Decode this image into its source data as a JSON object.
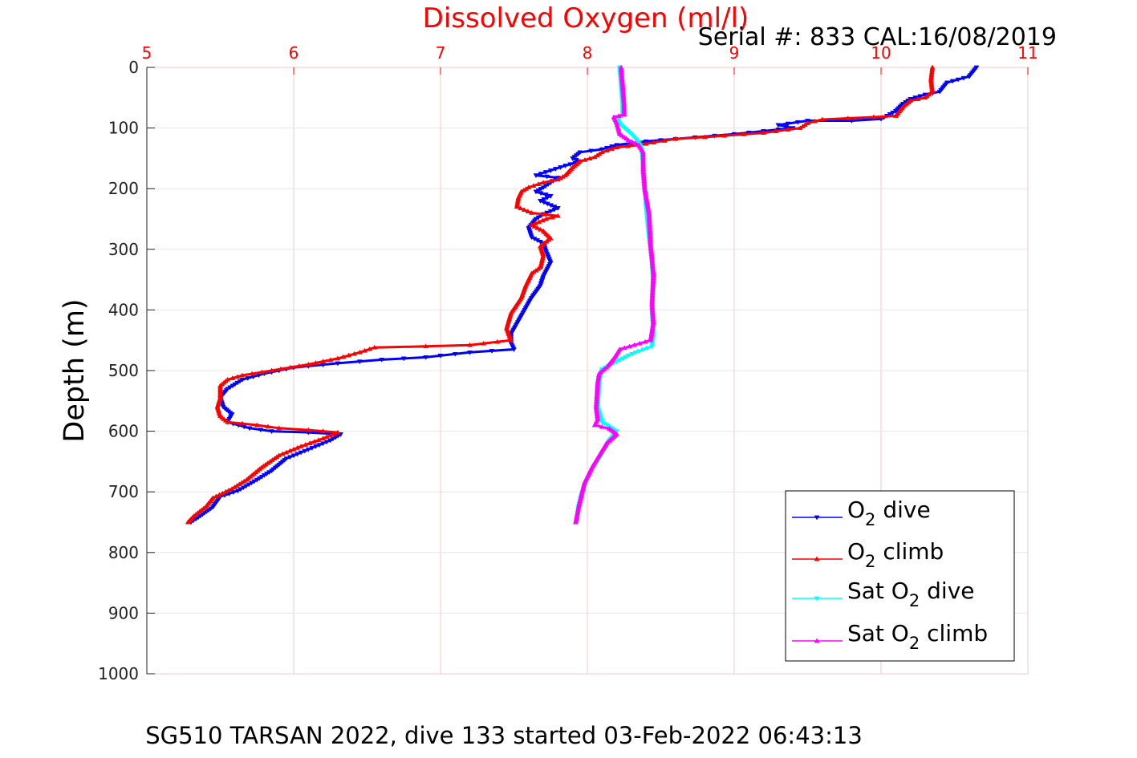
{
  "chart_data": {
    "type": "line",
    "title": "Dissolved Oxygen (ml/l)",
    "subtitle": "Serial #: 833  CAL:16/08/2019",
    "footer": "SG510 TARSAN 2022, dive 133 started 03-Feb-2022 06:43:13",
    "ylabel": "Depth (m)",
    "xlim": [
      5,
      11
    ],
    "ylim": [
      0,
      1000
    ],
    "y_reversed": true,
    "x_axis_position": "top",
    "x_ticks": [
      "5",
      "6",
      "7",
      "8",
      "9",
      "10",
      "11"
    ],
    "y_ticks": [
      "0",
      "100",
      "200",
      "300",
      "400",
      "500",
      "600",
      "700",
      "800",
      "900",
      "1000"
    ],
    "grid": true,
    "legend_position": "bottom-right",
    "legend": [
      {
        "main": "O",
        "sub": "2",
        "tail": " dive"
      },
      {
        "main": "O",
        "sub": "2",
        "tail": " climb"
      },
      {
        "main": "Sat O",
        "sub": "2",
        "tail": " dive"
      },
      {
        "main": "Sat O",
        "sub": "2",
        "tail": " climb"
      }
    ],
    "colors": {
      "title": "#ff0000",
      "x_ticks": "#ff0000",
      "grid": "#f2c8cc",
      "o2_dive": "#0000ff",
      "o2_climb": "#ff0000",
      "sat_dive": "#00ffff",
      "sat_climb": "#ff00ff"
    },
    "series": [
      {
        "key": "o2_dive",
        "marker": "down-triangle",
        "points": [
          [
            10.65,
            0
          ],
          [
            10.6,
            15
          ],
          [
            10.45,
            25
          ],
          [
            10.4,
            40
          ],
          [
            10.3,
            45
          ],
          [
            10.2,
            52
          ],
          [
            10.15,
            60
          ],
          [
            10.1,
            72
          ],
          [
            10.0,
            85
          ],
          [
            9.8,
            88
          ],
          [
            9.5,
            88
          ],
          [
            9.3,
            95
          ],
          [
            9.4,
            100
          ],
          [
            9.0,
            110
          ],
          [
            8.6,
            118
          ],
          [
            8.4,
            122
          ],
          [
            8.2,
            128
          ],
          [
            8.1,
            135
          ],
          [
            7.95,
            140
          ],
          [
            7.9,
            150
          ],
          [
            7.95,
            155
          ],
          [
            7.85,
            162
          ],
          [
            7.75,
            170
          ],
          [
            7.65,
            178
          ],
          [
            7.8,
            182
          ],
          [
            7.75,
            190
          ],
          [
            7.7,
            198
          ],
          [
            7.65,
            205
          ],
          [
            7.75,
            212
          ],
          [
            7.68,
            220
          ],
          [
            7.8,
            232
          ],
          [
            7.7,
            242
          ],
          [
            7.65,
            250
          ],
          [
            7.6,
            265
          ],
          [
            7.62,
            280
          ],
          [
            7.7,
            290
          ],
          [
            7.72,
            305
          ],
          [
            7.75,
            322
          ],
          [
            7.7,
            345
          ],
          [
            7.68,
            360
          ],
          [
            7.62,
            380
          ],
          [
            7.55,
            410
          ],
          [
            7.48,
            440
          ],
          [
            7.48,
            455
          ],
          [
            7.5,
            465
          ],
          [
            7.2,
            470
          ],
          [
            6.9,
            478
          ],
          [
            6.6,
            482
          ],
          [
            6.3,
            488
          ],
          [
            6.0,
            495
          ],
          [
            5.8,
            505
          ],
          [
            5.65,
            515
          ],
          [
            5.55,
            530
          ],
          [
            5.5,
            545
          ],
          [
            5.52,
            560
          ],
          [
            5.58,
            572
          ],
          [
            5.55,
            585
          ],
          [
            5.7,
            595
          ],
          [
            5.85,
            600
          ],
          [
            6.1,
            602
          ],
          [
            6.32,
            605
          ],
          [
            6.25,
            615
          ],
          [
            6.1,
            630
          ],
          [
            5.95,
            645
          ],
          [
            5.85,
            665
          ],
          [
            5.75,
            680
          ],
          [
            5.62,
            698
          ],
          [
            5.5,
            708
          ],
          [
            5.45,
            725
          ],
          [
            5.35,
            742
          ],
          [
            5.3,
            750
          ]
        ]
      },
      {
        "key": "o2_climb",
        "marker": "up-triangle",
        "points": [
          [
            10.35,
            0
          ],
          [
            10.34,
            20
          ],
          [
            10.35,
            40
          ],
          [
            10.3,
            50
          ],
          [
            10.2,
            55
          ],
          [
            10.15,
            65
          ],
          [
            10.1,
            80
          ],
          [
            9.95,
            82
          ],
          [
            9.6,
            86
          ],
          [
            9.5,
            92
          ],
          [
            9.45,
            100
          ],
          [
            9.2,
            108
          ],
          [
            8.8,
            115
          ],
          [
            8.6,
            118
          ],
          [
            8.45,
            124
          ],
          [
            8.35,
            128
          ],
          [
            8.2,
            132
          ],
          [
            8.1,
            140
          ],
          [
            8.05,
            148
          ],
          [
            7.95,
            155
          ],
          [
            7.9,
            165
          ],
          [
            7.85,
            178
          ],
          [
            7.8,
            185
          ],
          [
            7.7,
            190
          ],
          [
            7.6,
            198
          ],
          [
            7.55,
            205
          ],
          [
            7.53,
            215
          ],
          [
            7.52,
            230
          ],
          [
            7.62,
            240
          ],
          [
            7.8,
            245
          ],
          [
            7.72,
            250
          ],
          [
            7.62,
            260
          ],
          [
            7.7,
            270
          ],
          [
            7.75,
            282
          ],
          [
            7.68,
            295
          ],
          [
            7.7,
            310
          ],
          [
            7.68,
            330
          ],
          [
            7.62,
            340
          ],
          [
            7.58,
            360
          ],
          [
            7.55,
            380
          ],
          [
            7.48,
            405
          ],
          [
            7.45,
            430
          ],
          [
            7.48,
            450
          ],
          [
            7.2,
            458
          ],
          [
            6.9,
            460
          ],
          [
            6.55,
            462
          ],
          [
            6.45,
            470
          ],
          [
            6.3,
            480
          ],
          [
            6.1,
            490
          ],
          [
            5.85,
            500
          ],
          [
            5.65,
            508
          ],
          [
            5.55,
            515
          ],
          [
            5.5,
            525
          ],
          [
            5.5,
            545
          ],
          [
            5.48,
            560
          ],
          [
            5.5,
            575
          ],
          [
            5.55,
            585
          ],
          [
            5.75,
            590
          ],
          [
            5.9,
            595
          ],
          [
            6.1,
            598
          ],
          [
            6.3,
            602
          ],
          [
            6.2,
            612
          ],
          [
            6.05,
            625
          ],
          [
            5.9,
            640
          ],
          [
            5.78,
            660
          ],
          [
            5.68,
            680
          ],
          [
            5.58,
            695
          ],
          [
            5.45,
            710
          ],
          [
            5.4,
            725
          ],
          [
            5.32,
            740
          ],
          [
            5.28,
            750
          ]
        ]
      },
      {
        "key": "sat_dive",
        "marker": "down-triangle",
        "points": [
          [
            8.22,
            0
          ],
          [
            8.23,
            30
          ],
          [
            8.24,
            60
          ],
          [
            8.24,
            80
          ],
          [
            8.2,
            85
          ],
          [
            8.23,
            95
          ],
          [
            8.3,
            110
          ],
          [
            8.33,
            118
          ],
          [
            8.35,
            125
          ],
          [
            8.37,
            135
          ],
          [
            8.38,
            160
          ],
          [
            8.39,
            190
          ],
          [
            8.4,
            230
          ],
          [
            8.42,
            280
          ],
          [
            8.44,
            320
          ],
          [
            8.45,
            360
          ],
          [
            8.44,
            400
          ],
          [
            8.45,
            440
          ],
          [
            8.44,
            460
          ],
          [
            8.35,
            468
          ],
          [
            8.28,
            475
          ],
          [
            8.2,
            485
          ],
          [
            8.1,
            498
          ],
          [
            8.08,
            520
          ],
          [
            8.07,
            560
          ],
          [
            8.1,
            585
          ],
          [
            8.2,
            600
          ],
          [
            8.15,
            615
          ],
          [
            8.12,
            630
          ],
          [
            8.08,
            645
          ],
          [
            8.03,
            665
          ],
          [
            7.99,
            685
          ],
          [
            7.96,
            705
          ],
          [
            7.94,
            725
          ],
          [
            7.93,
            750
          ]
        ]
      },
      {
        "key": "sat_climb",
        "marker": "up-triangle",
        "points": [
          [
            8.23,
            0
          ],
          [
            8.24,
            30
          ],
          [
            8.25,
            60
          ],
          [
            8.25,
            78
          ],
          [
            8.18,
            82
          ],
          [
            8.2,
            92
          ],
          [
            8.22,
            110
          ],
          [
            8.28,
            120
          ],
          [
            8.35,
            128
          ],
          [
            8.38,
            140
          ],
          [
            8.38,
            170
          ],
          [
            8.39,
            200
          ],
          [
            8.42,
            240
          ],
          [
            8.43,
            290
          ],
          [
            8.45,
            340
          ],
          [
            8.44,
            390
          ],
          [
            8.45,
            420
          ],
          [
            8.43,
            450
          ],
          [
            8.32,
            458
          ],
          [
            8.22,
            465
          ],
          [
            8.18,
            480
          ],
          [
            8.13,
            495
          ],
          [
            8.08,
            505
          ],
          [
            8.07,
            520
          ],
          [
            8.06,
            560
          ],
          [
            8.07,
            580
          ],
          [
            8.05,
            590
          ],
          [
            8.15,
            596
          ],
          [
            8.2,
            605
          ],
          [
            8.13,
            620
          ],
          [
            8.08,
            640
          ],
          [
            8.03,
            660
          ],
          [
            7.98,
            685
          ],
          [
            7.96,
            705
          ],
          [
            7.94,
            725
          ],
          [
            7.92,
            750
          ]
        ]
      }
    ]
  }
}
